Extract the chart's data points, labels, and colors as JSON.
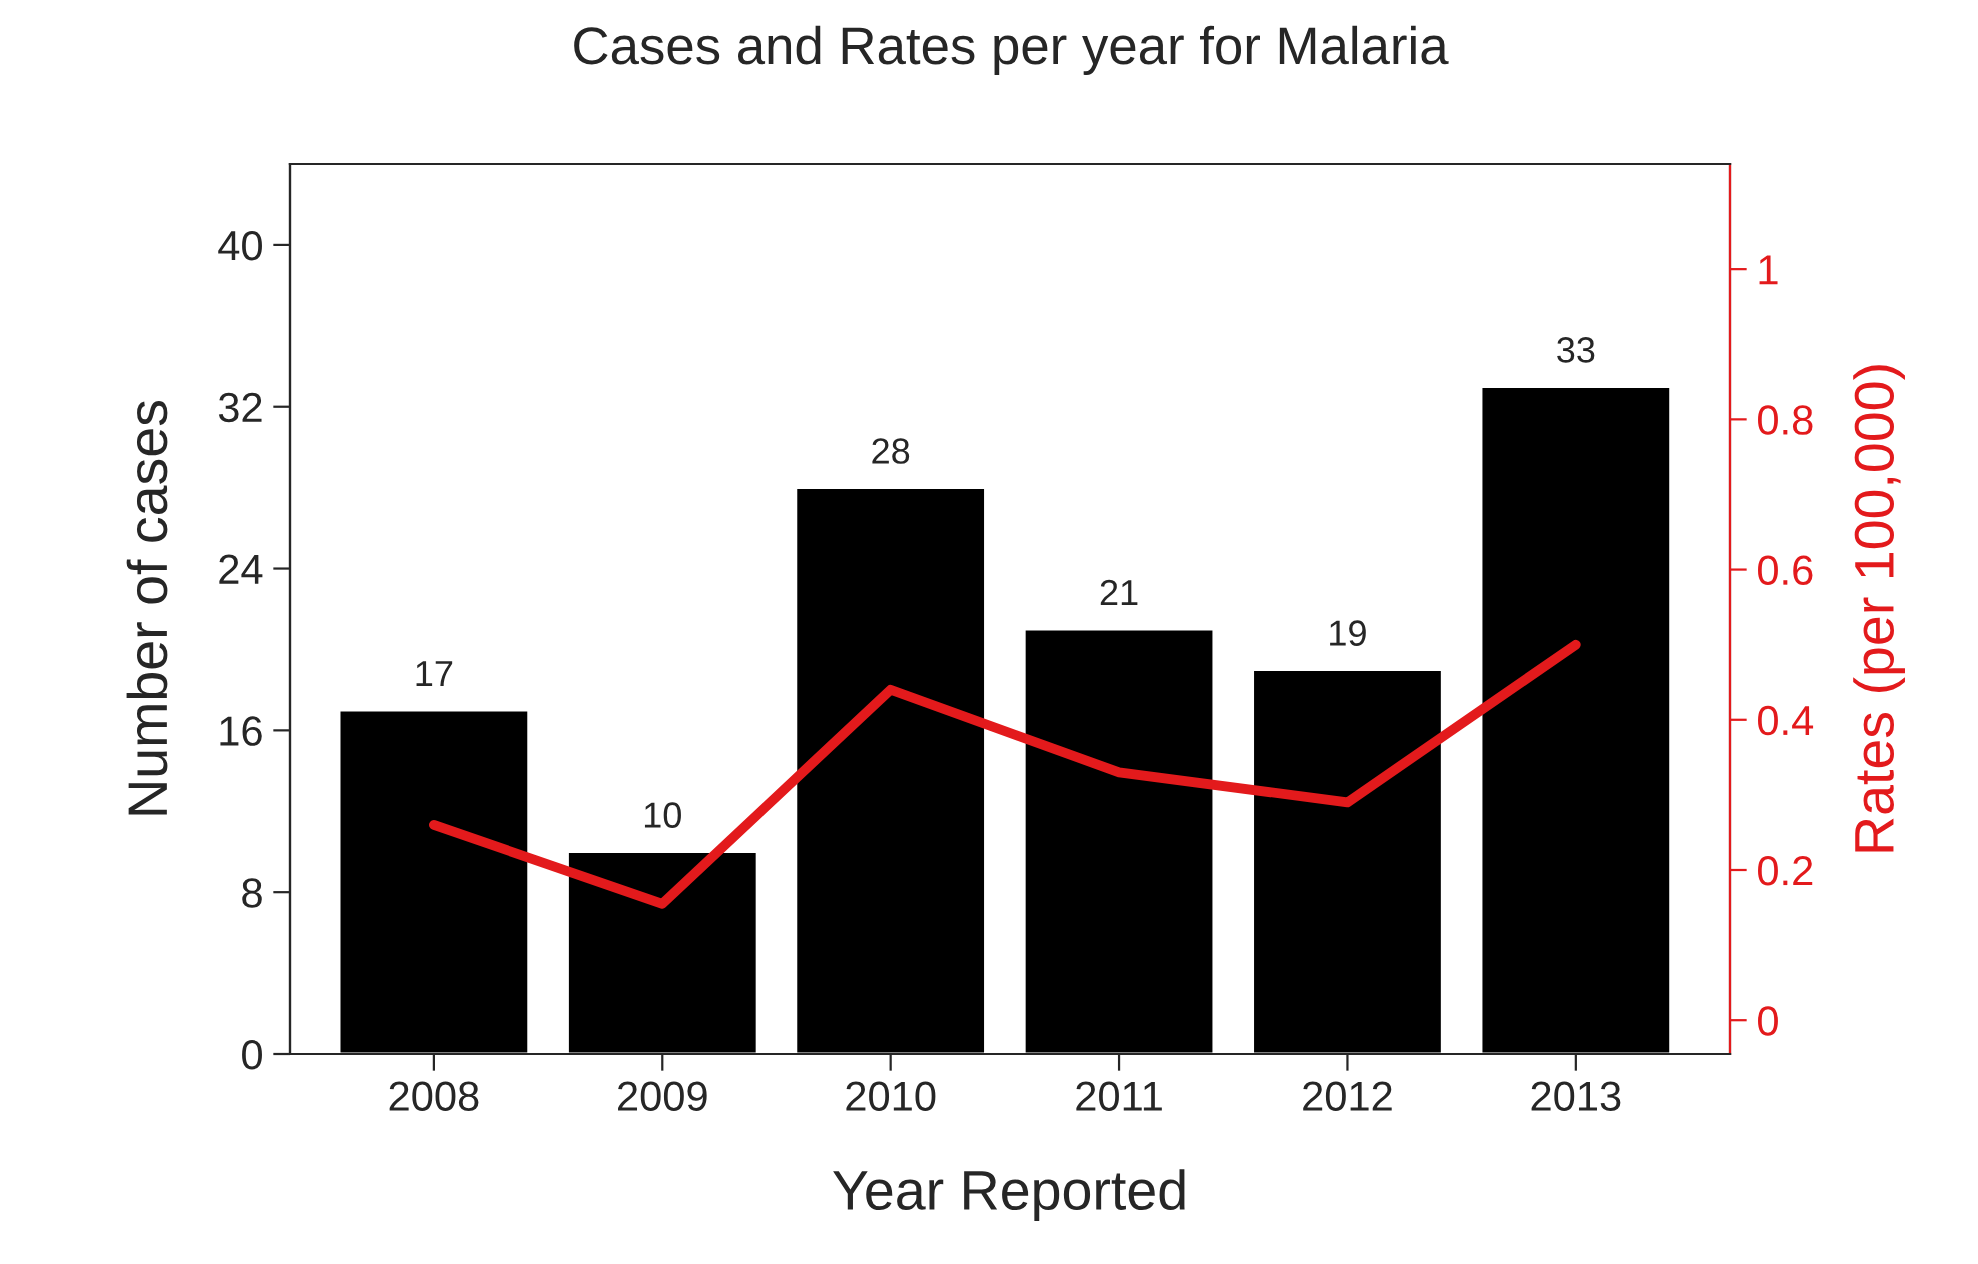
{
  "chart_data": {
    "type": "bar",
    "title": "Cases and Rates per year for Malaria",
    "xlabel": "Year Reported",
    "ylabel": "Number of cases",
    "y2label": "Rates (per 100,000)",
    "categories": [
      "2008",
      "2009",
      "2010",
      "2011",
      "2012",
      "2013"
    ],
    "series": [
      {
        "color": "#000000",
        "values": [
          17,
          10,
          28,
          21,
          19,
          33
        ],
        "data_labels": true
      },
      {
        "type": "line",
        "axis": "y2",
        "color": "#e31a1c",
        "values": [
          0.26,
          0.155,
          0.44,
          0.33,
          0.29,
          0.5
        ]
      }
    ],
    "ylim": [
      0,
      44
    ],
    "yticks": [
      0,
      8,
      16,
      24,
      32,
      40
    ],
    "y2lim": [
      -0.045,
      1.14
    ],
    "y2ticks": [
      0,
      0.2,
      0.4,
      0.6,
      0.8,
      1
    ],
    "grid": false,
    "legend": false
  }
}
